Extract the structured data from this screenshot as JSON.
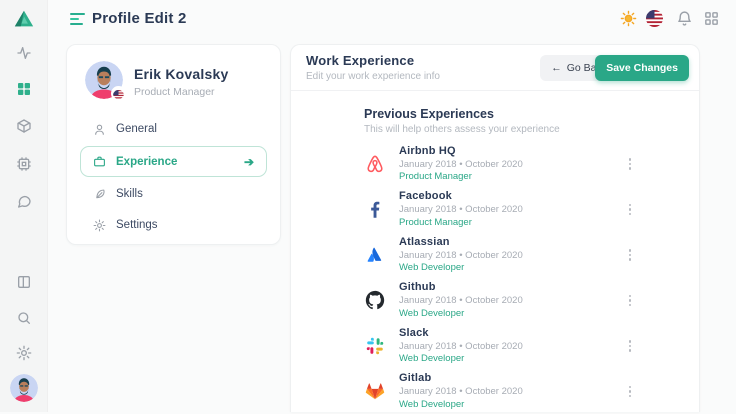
{
  "app": {
    "title": "Profile Edit 2"
  },
  "topbar": {
    "icons": [
      "sun",
      "us-flag",
      "bell",
      "grid"
    ]
  },
  "sidebar": {
    "icons": [
      "app-logo",
      "activity",
      "grid",
      "package",
      "cpu",
      "chat",
      "layout",
      "search",
      "gear",
      "user-avatar"
    ],
    "active_icon": "grid"
  },
  "profile": {
    "name": "Erik Kovalsky",
    "role": "Product Manager",
    "nav": [
      {
        "label": "General",
        "icon": "user",
        "active": false
      },
      {
        "label": "Experience",
        "icon": "briefcase",
        "active": true
      },
      {
        "label": "Skills",
        "icon": "feather",
        "active": false
      },
      {
        "label": "Settings",
        "icon": "gear",
        "active": false
      }
    ]
  },
  "work": {
    "title": "Work Experience",
    "subtitle": "Edit your work experience info",
    "go_back_label": "Go Back",
    "save_label": "Save Changes",
    "section_title": "Previous Experiences",
    "section_subtitle": "This will help others assess your experience",
    "experiences": [
      {
        "company": "Airbnb HQ",
        "period": "January 2018 • October 2020",
        "role": "Product Manager",
        "logo": "airbnb"
      },
      {
        "company": "Facebook",
        "period": "January 2018 • October 2020",
        "role": "Product Manager",
        "logo": "facebook"
      },
      {
        "company": "Atlassian",
        "period": "January 2018 • October 2020",
        "role": "Web Developer",
        "logo": "atlassian"
      },
      {
        "company": "Github",
        "period": "January 2018 • October 2020",
        "role": "Web Developer",
        "logo": "github"
      },
      {
        "company": "Slack",
        "period": "January 2018 • October 2020",
        "role": "Web Developer",
        "logo": "slack"
      },
      {
        "company": "Gitlab",
        "period": "January 2018 • October 2020",
        "role": "Web Developer",
        "logo": "gitlab"
      }
    ]
  },
  "colors": {
    "accent": "#2aa787",
    "navy": "#2b3a55",
    "muted": "#a7acb4"
  }
}
